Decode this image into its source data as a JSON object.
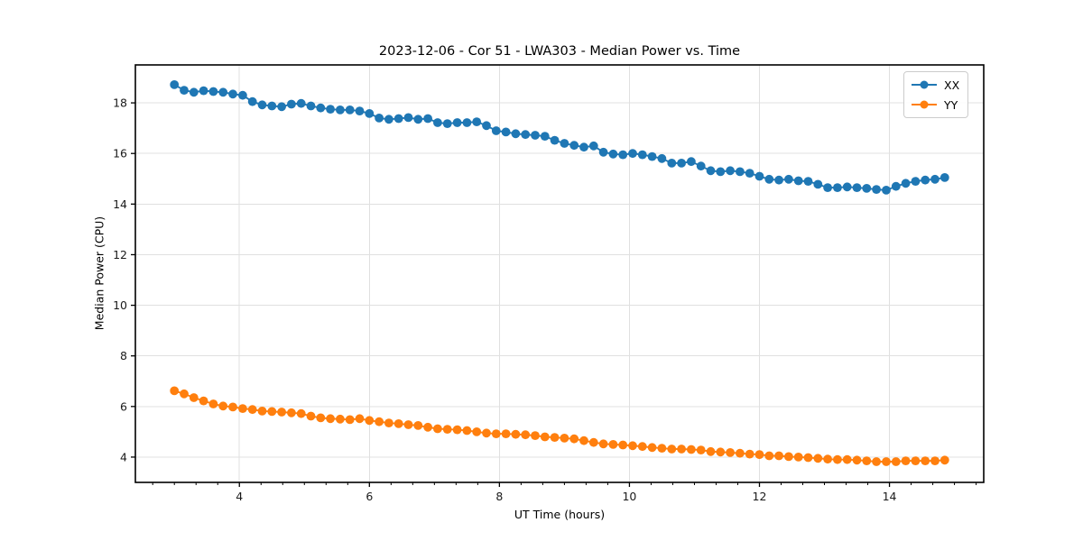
{
  "chart_data": {
    "type": "line",
    "title": "2023-12-06 - Cor 51 - LWA303 - Median Power vs. Time",
    "xlabel": "UT Time (hours)",
    "ylabel": "Median Power (CPU)",
    "xlim": [
      2.4,
      15.45
    ],
    "ylim": [
      3.0,
      19.5
    ],
    "xticks": [
      4,
      6,
      8,
      10,
      12,
      14
    ],
    "yticks": [
      4,
      6,
      8,
      10,
      12,
      14,
      16,
      18
    ],
    "x_minor_step": 0.33333,
    "grid": true,
    "grid_color": "#e0e0e0",
    "axis_color": "#000000",
    "legend_position": "upper-right",
    "x": [
      3.0,
      3.15,
      3.3,
      3.45,
      3.6,
      3.75,
      3.9,
      4.05,
      4.2,
      4.35,
      4.5,
      4.65,
      4.8,
      4.95,
      5.1,
      5.25,
      5.4,
      5.55,
      5.7,
      5.85,
      6.0,
      6.15,
      6.3,
      6.45,
      6.6,
      6.75,
      6.9,
      7.05,
      7.2,
      7.35,
      7.5,
      7.65,
      7.8,
      7.95,
      8.1,
      8.25,
      8.4,
      8.55,
      8.7,
      8.85,
      9.0,
      9.15,
      9.3,
      9.45,
      9.6,
      9.75,
      9.9,
      10.05,
      10.2,
      10.35,
      10.5,
      10.65,
      10.8,
      10.95,
      11.1,
      11.25,
      11.4,
      11.55,
      11.7,
      11.85,
      12.0,
      12.15,
      12.3,
      12.45,
      12.6,
      12.75,
      12.9,
      13.05,
      13.2,
      13.35,
      13.5,
      13.65,
      13.8,
      13.95,
      14.1,
      14.25,
      14.4,
      14.55,
      14.7,
      14.85
    ],
    "series": [
      {
        "name": "XX",
        "color": "#1f77b4",
        "values": [
          18.72,
          18.5,
          18.42,
          18.48,
          18.45,
          18.42,
          18.35,
          18.3,
          18.05,
          17.92,
          17.88,
          17.85,
          17.95,
          17.98,
          17.88,
          17.8,
          17.75,
          17.72,
          17.72,
          17.68,
          17.58,
          17.4,
          17.35,
          17.38,
          17.42,
          17.35,
          17.38,
          17.22,
          17.18,
          17.22,
          17.22,
          17.25,
          17.1,
          16.9,
          16.85,
          16.78,
          16.75,
          16.72,
          16.68,
          16.52,
          16.4,
          16.32,
          16.25,
          16.3,
          16.05,
          15.98,
          15.95,
          16.0,
          15.95,
          15.88,
          15.8,
          15.62,
          15.62,
          15.68,
          15.5,
          15.32,
          15.28,
          15.32,
          15.28,
          15.22,
          15.1,
          14.98,
          14.95,
          14.98,
          14.92,
          14.9,
          14.78,
          14.65,
          14.65,
          14.68,
          14.65,
          14.62,
          14.58,
          14.55,
          14.7,
          14.82,
          14.9,
          14.95,
          14.98,
          15.05
        ]
      },
      {
        "name": "YY",
        "color": "#ff7f0e",
        "values": [
          6.62,
          6.5,
          6.35,
          6.22,
          6.1,
          6.02,
          5.98,
          5.92,
          5.88,
          5.82,
          5.8,
          5.78,
          5.75,
          5.72,
          5.62,
          5.55,
          5.52,
          5.5,
          5.48,
          5.52,
          5.45,
          5.4,
          5.35,
          5.32,
          5.28,
          5.25,
          5.18,
          5.12,
          5.1,
          5.08,
          5.05,
          5.0,
          4.95,
          4.92,
          4.92,
          4.9,
          4.88,
          4.85,
          4.8,
          4.78,
          4.75,
          4.72,
          4.65,
          4.58,
          4.52,
          4.5,
          4.48,
          4.45,
          4.42,
          4.38,
          4.35,
          4.32,
          4.32,
          4.3,
          4.28,
          4.22,
          4.2,
          4.18,
          4.15,
          4.12,
          4.1,
          4.05,
          4.05,
          4.02,
          4.0,
          3.98,
          3.95,
          3.92,
          3.9,
          3.9,
          3.88,
          3.85,
          3.82,
          3.82,
          3.82,
          3.85,
          3.85,
          3.85,
          3.85,
          3.88
        ]
      }
    ]
  }
}
